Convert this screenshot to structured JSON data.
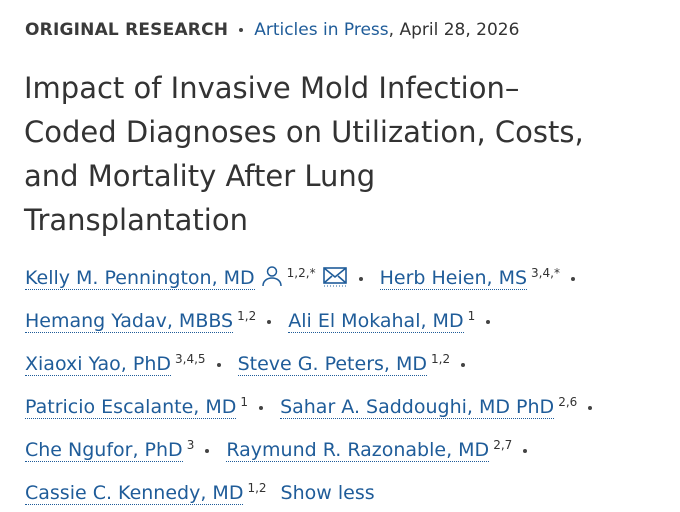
{
  "header": {
    "section": "ORIGINAL RESEARCH",
    "issue": "Articles in Press",
    "date_separator": ",",
    "date": "April 28, 2026"
  },
  "title_lines": [
    "Impact of Invasive Mold Infection–",
    "Coded Diagnoses on Utilization, Costs,",
    "and Mortality After Lung",
    "Transplantation"
  ],
  "authors": [
    {
      "name": "Kelly M. Pennington, MD",
      "affiliations": "1,2,*"
    },
    {
      "name": "Herb Heien, MS",
      "affiliations": "3,4,*"
    },
    {
      "name": "Hemang Yadav, MBBS",
      "affiliations": "1,2"
    },
    {
      "name": "Ali El Mokahal, MD",
      "affiliations": "1"
    },
    {
      "name": "Xiaoxi Yao, PhD",
      "affiliations": "3,4,5"
    },
    {
      "name": "Steve G. Peters, MD",
      "affiliations": "1,2"
    },
    {
      "name": "Patricio Escalante, MD",
      "affiliations": "1"
    },
    {
      "name": "Sahar A. Saddoughi, MD PhD",
      "affiliations": "2,6"
    },
    {
      "name": "Che Ngufor, PhD",
      "affiliations": "3"
    },
    {
      "name": "Raymund R. Razonable, MD",
      "affiliations": "2,7"
    },
    {
      "name": "Cassie C. Kennedy, MD",
      "affiliations": "1,2"
    }
  ],
  "toggle": "Show less"
}
